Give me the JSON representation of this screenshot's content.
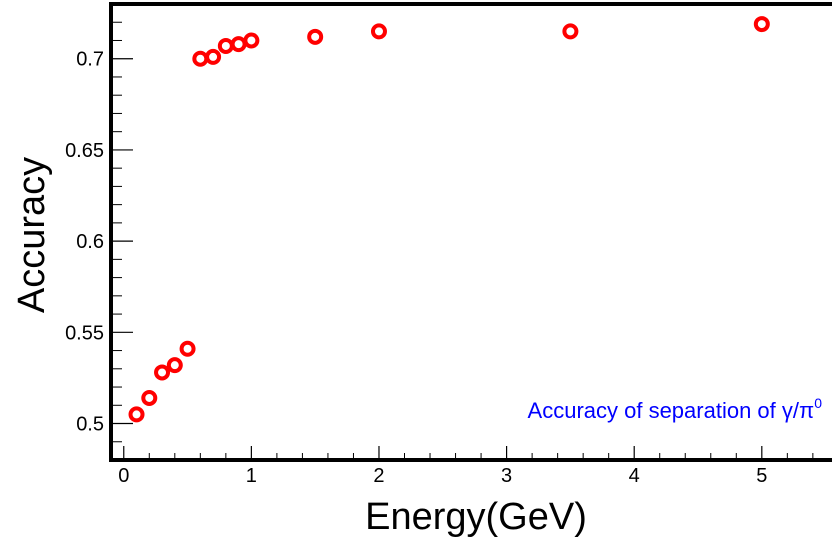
{
  "chart_data": {
    "type": "scatter",
    "title": "",
    "xlabel": "Energy(GeV)",
    "ylabel": "Accuracy",
    "xlim": [
      -0.1,
      5.55
    ],
    "ylim": [
      0.48,
      0.73
    ],
    "x_ticks": [
      0,
      1,
      2,
      3,
      4,
      5
    ],
    "y_ticks": [
      0.5,
      0.55,
      0.6,
      0.65,
      0.7
    ],
    "x_tick_labels": [
      "0",
      "1",
      "2",
      "3",
      "4",
      "5"
    ],
    "y_tick_labels": [
      "0.5",
      "0.55",
      "0.6",
      "0.65",
      "0.7"
    ],
    "grid": false,
    "annotation": {
      "text": "Accuracy of separation of ",
      "symbol_gamma": "γ",
      "slash": "/",
      "symbol_pi": "π",
      "superscript": "0"
    },
    "colors": {
      "marker": "#ff0000",
      "annotation": "#0000ff",
      "axis": "#000000"
    },
    "series": [
      {
        "x": [
          0.1,
          0.2,
          0.3,
          0.4,
          0.5,
          0.6,
          0.7,
          0.8,
          0.9,
          1.0,
          1.5,
          2.0,
          3.5,
          5.0
        ],
        "y": [
          0.505,
          0.514,
          0.528,
          0.532,
          0.541,
          0.7,
          0.701,
          0.707,
          0.708,
          0.71,
          0.712,
          0.715,
          0.715,
          0.719
        ]
      }
    ]
  }
}
